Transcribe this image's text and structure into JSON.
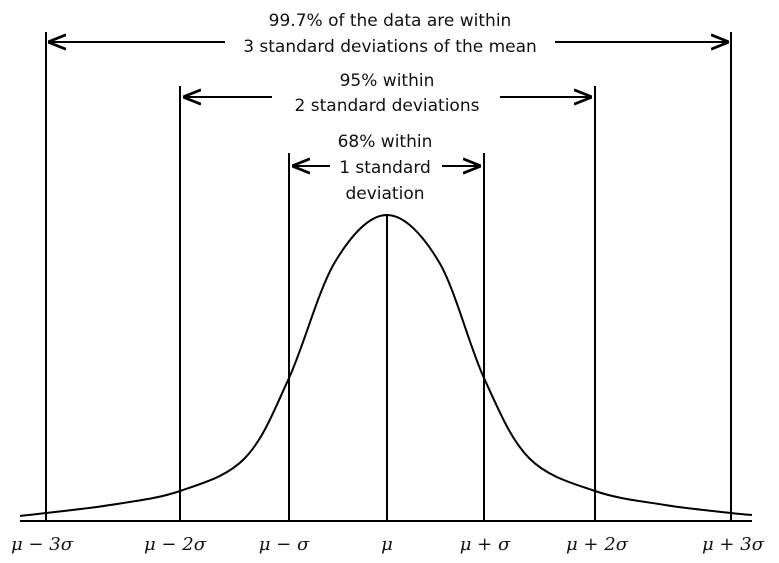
{
  "annotations": {
    "three_sigma": [
      "99.7% of the data are within",
      "3 standard deviations of the mean"
    ],
    "two_sigma": [
      "95% within",
      "2 standard deviations"
    ],
    "one_sigma": [
      "68% within",
      "1 standard",
      "deviation"
    ]
  },
  "axis_labels": [
    "μ − 3σ",
    "μ − 2σ",
    "μ − σ",
    "μ",
    "μ + σ",
    "μ + 2σ",
    "μ + 3σ"
  ]
}
